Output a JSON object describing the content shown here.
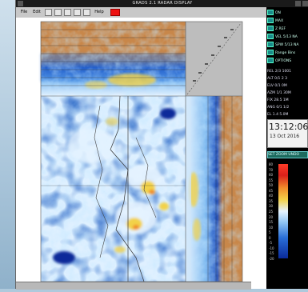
{
  "window": {
    "title": "GRADS 2.1 RADAR DISPLAY"
  },
  "toolbar": {
    "items": [
      "File",
      "Edit",
      "",
      "",
      "",
      "",
      "",
      "Help",
      ""
    ]
  },
  "side_panel": {
    "rows": [
      {
        "label": "ON"
      },
      {
        "label": "MAX"
      },
      {
        "label": "Z REF"
      },
      {
        "label": "VEL 5/13 NA"
      },
      {
        "label": "SPW 5/13 NA"
      },
      {
        "label": "Range Bins"
      },
      {
        "label": "OPTIONS"
      }
    ],
    "info": [
      "REL 2/3 1001",
      "ALT 0/1 2 3",
      "ELV 0/1 0M",
      "AZM 1/1 30M",
      "FIX 28.5 1M",
      "ANG 0/1 1/2",
      "EL 1.4 5.0M"
    ],
    "clock": {
      "time": "13:12:06",
      "date": "13 Oct 2016"
    },
    "strip": "SET  ZOOM  UNDO",
    "colorbar": {
      "ticks_left": [
        "80",
        "70",
        "60",
        "55",
        "50",
        "45",
        "40",
        "35",
        "30",
        "25",
        "20",
        "15",
        "10",
        "5",
        "0",
        "-5",
        "-10",
        "-15",
        "-20"
      ]
    }
  },
  "colors": {
    "brown": "#c8874a",
    "deep_blue": "#0a2a9a",
    "blue": "#2a6fd8",
    "light_blue": "#8fc4f4",
    "pale": "#e6f3ff",
    "yellow": "#f2d24a",
    "orange": "#f08a2a",
    "red": "#d8201a"
  }
}
